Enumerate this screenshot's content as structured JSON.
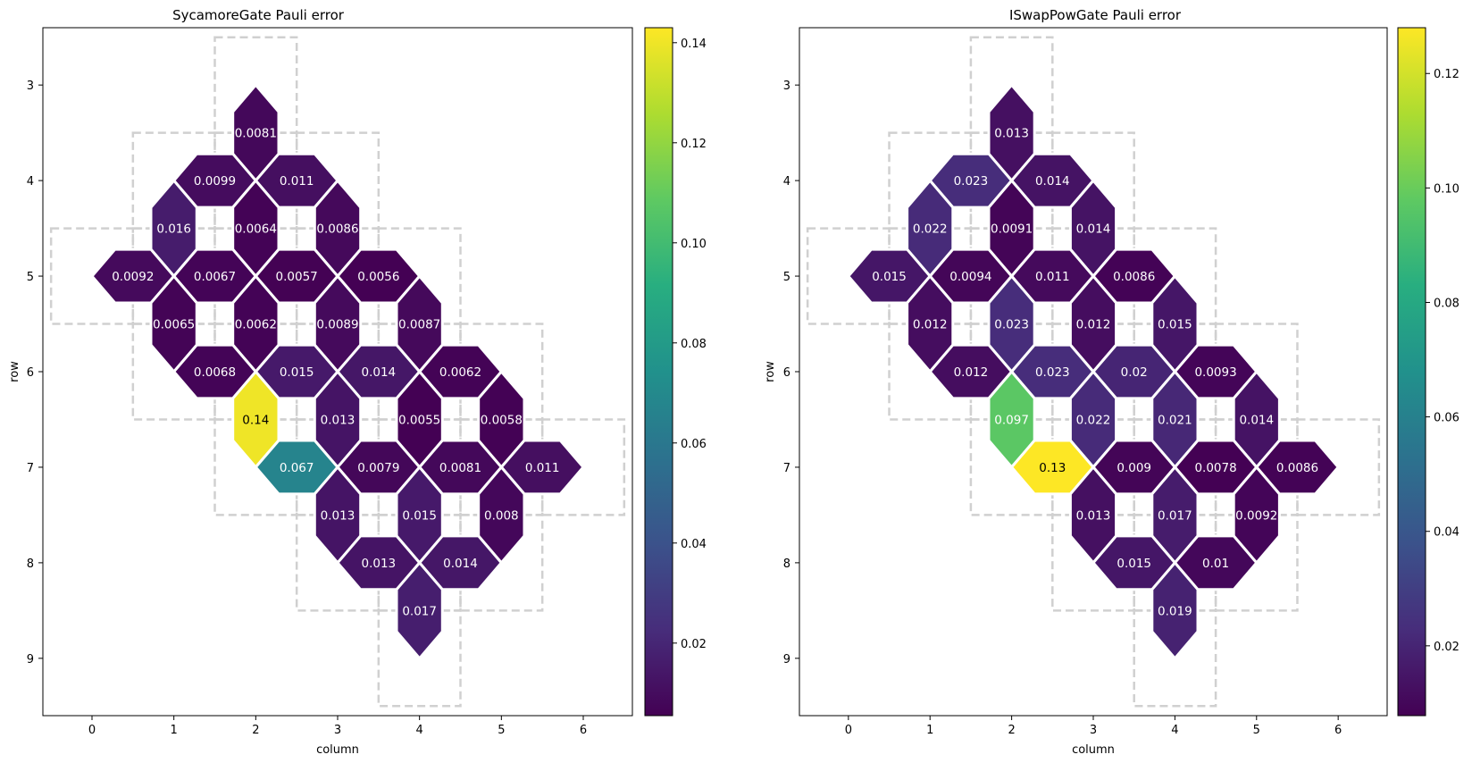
{
  "chart_data": [
    {
      "type": "heatmap",
      "title": "SycamoreGate Pauli error",
      "xlabel": "column",
      "ylabel": "row",
      "xlim": [
        -0.6,
        6.6
      ],
      "ylim": [
        9.6,
        2.4
      ],
      "xticks": [
        "0",
        "1",
        "2",
        "3",
        "4",
        "5",
        "6"
      ],
      "yticks": [
        "3",
        "4",
        "5",
        "6",
        "7",
        "8",
        "9"
      ],
      "colorbar": {
        "min": 0.0055,
        "max": 0.143,
        "ticks": [
          "0.02",
          "0.04",
          "0.06",
          "0.08",
          "0.10",
          "0.12",
          "0.14"
        ]
      },
      "couplers": [
        {
          "qubits": [
            [
              3,
              2
            ],
            [
              4,
              2
            ]
          ],
          "value": 0.0081,
          "label": "0.0081"
        },
        {
          "qubits": [
            [
              4,
              1
            ],
            [
              4,
              2
            ]
          ],
          "value": 0.0099,
          "label": "0.0099"
        },
        {
          "qubits": [
            [
              4,
              2
            ],
            [
              4,
              3
            ]
          ],
          "value": 0.011,
          "label": "0.011"
        },
        {
          "qubits": [
            [
              4,
              1
            ],
            [
              5,
              1
            ]
          ],
          "value": 0.016,
          "label": "0.016"
        },
        {
          "qubits": [
            [
              4,
              2
            ],
            [
              5,
              2
            ]
          ],
          "value": 0.0064,
          "label": "0.0064"
        },
        {
          "qubits": [
            [
              4,
              3
            ],
            [
              5,
              3
            ]
          ],
          "value": 0.0086,
          "label": "0.0086"
        },
        {
          "qubits": [
            [
              5,
              0
            ],
            [
              5,
              1
            ]
          ],
          "value": 0.0092,
          "label": "0.0092"
        },
        {
          "qubits": [
            [
              5,
              1
            ],
            [
              5,
              2
            ]
          ],
          "value": 0.0067,
          "label": "0.0067"
        },
        {
          "qubits": [
            [
              5,
              2
            ],
            [
              5,
              3
            ]
          ],
          "value": 0.0057,
          "label": "0.0057"
        },
        {
          "qubits": [
            [
              5,
              3
            ],
            [
              5,
              4
            ]
          ],
          "value": 0.0056,
          "label": "0.0056"
        },
        {
          "qubits": [
            [
              5,
              1
            ],
            [
              6,
              1
            ]
          ],
          "value": 0.0065,
          "label": "0.0065"
        },
        {
          "qubits": [
            [
              5,
              2
            ],
            [
              6,
              2
            ]
          ],
          "value": 0.0062,
          "label": "0.0062"
        },
        {
          "qubits": [
            [
              5,
              3
            ],
            [
              6,
              3
            ]
          ],
          "value": 0.0089,
          "label": "0.0089"
        },
        {
          "qubits": [
            [
              5,
              4
            ],
            [
              6,
              4
            ]
          ],
          "value": 0.0087,
          "label": "0.0087"
        },
        {
          "qubits": [
            [
              6,
              1
            ],
            [
              6,
              2
            ]
          ],
          "value": 0.0068,
          "label": "0.0068"
        },
        {
          "qubits": [
            [
              6,
              2
            ],
            [
              6,
              3
            ]
          ],
          "value": 0.015,
          "label": "0.015"
        },
        {
          "qubits": [
            [
              6,
              3
            ],
            [
              6,
              4
            ]
          ],
          "value": 0.014,
          "label": "0.014"
        },
        {
          "qubits": [
            [
              6,
              4
            ],
            [
              6,
              5
            ]
          ],
          "value": 0.0062,
          "label": "0.0062"
        },
        {
          "qubits": [
            [
              6,
              2
            ],
            [
              7,
              2
            ]
          ],
          "value": 0.14,
          "label": "0.14"
        },
        {
          "qubits": [
            [
              6,
              3
            ],
            [
              7,
              3
            ]
          ],
          "value": 0.013,
          "label": "0.013"
        },
        {
          "qubits": [
            [
              6,
              4
            ],
            [
              7,
              4
            ]
          ],
          "value": 0.0055,
          "label": "0.0055"
        },
        {
          "qubits": [
            [
              6,
              5
            ],
            [
              7,
              5
            ]
          ],
          "value": 0.0058,
          "label": "0.0058"
        },
        {
          "qubits": [
            [
              7,
              2
            ],
            [
              7,
              3
            ]
          ],
          "value": 0.067,
          "label": "0.067"
        },
        {
          "qubits": [
            [
              7,
              3
            ],
            [
              7,
              4
            ]
          ],
          "value": 0.0079,
          "label": "0.0079"
        },
        {
          "qubits": [
            [
              7,
              4
            ],
            [
              7,
              5
            ]
          ],
          "value": 0.0081,
          "label": "0.0081"
        },
        {
          "qubits": [
            [
              7,
              5
            ],
            [
              7,
              6
            ]
          ],
          "value": 0.011,
          "label": "0.011"
        },
        {
          "qubits": [
            [
              7,
              3
            ],
            [
              8,
              3
            ]
          ],
          "value": 0.013,
          "label": "0.013"
        },
        {
          "qubits": [
            [
              7,
              4
            ],
            [
              8,
              4
            ]
          ],
          "value": 0.015,
          "label": "0.015"
        },
        {
          "qubits": [
            [
              7,
              5
            ],
            [
              8,
              5
            ]
          ],
          "value": 0.008,
          "label": "0.008"
        },
        {
          "qubits": [
            [
              8,
              3
            ],
            [
              8,
              4
            ]
          ],
          "value": 0.013,
          "label": "0.013"
        },
        {
          "qubits": [
            [
              8,
              4
            ],
            [
              8,
              5
            ]
          ],
          "value": 0.014,
          "label": "0.014"
        },
        {
          "qubits": [
            [
              8,
              4
            ],
            [
              9,
              4
            ]
          ],
          "value": 0.017,
          "label": "0.017"
        }
      ]
    },
    {
      "type": "heatmap",
      "title": "ISwapPowGate Pauli error",
      "xlabel": "column",
      "ylabel": "row",
      "xlim": [
        -0.6,
        6.6
      ],
      "ylim": [
        9.6,
        2.4
      ],
      "xticks": [
        "0",
        "1",
        "2",
        "3",
        "4",
        "5",
        "6"
      ],
      "yticks": [
        "3",
        "4",
        "5",
        "6",
        "7",
        "8",
        "9"
      ],
      "colorbar": {
        "min": 0.0078,
        "max": 0.128,
        "ticks": [
          "0.02",
          "0.04",
          "0.06",
          "0.08",
          "0.10",
          "0.12"
        ]
      },
      "couplers": [
        {
          "qubits": [
            [
              3,
              2
            ],
            [
              4,
              2
            ]
          ],
          "value": 0.013,
          "label": "0.013"
        },
        {
          "qubits": [
            [
              4,
              1
            ],
            [
              4,
              2
            ]
          ],
          "value": 0.023,
          "label": "0.023"
        },
        {
          "qubits": [
            [
              4,
              2
            ],
            [
              4,
              3
            ]
          ],
          "value": 0.014,
          "label": "0.014"
        },
        {
          "qubits": [
            [
              4,
              1
            ],
            [
              5,
              1
            ]
          ],
          "value": 0.022,
          "label": "0.022"
        },
        {
          "qubits": [
            [
              4,
              2
            ],
            [
              5,
              2
            ]
          ],
          "value": 0.0091,
          "label": "0.0091"
        },
        {
          "qubits": [
            [
              4,
              3
            ],
            [
              5,
              3
            ]
          ],
          "value": 0.014,
          "label": "0.014"
        },
        {
          "qubits": [
            [
              5,
              0
            ],
            [
              5,
              1
            ]
          ],
          "value": 0.015,
          "label": "0.015"
        },
        {
          "qubits": [
            [
              5,
              1
            ],
            [
              5,
              2
            ]
          ],
          "value": 0.0094,
          "label": "0.0094"
        },
        {
          "qubits": [
            [
              5,
              2
            ],
            [
              5,
              3
            ]
          ],
          "value": 0.011,
          "label": "0.011"
        },
        {
          "qubits": [
            [
              5,
              3
            ],
            [
              5,
              4
            ]
          ],
          "value": 0.0086,
          "label": "0.0086"
        },
        {
          "qubits": [
            [
              5,
              1
            ],
            [
              6,
              1
            ]
          ],
          "value": 0.012,
          "label": "0.012"
        },
        {
          "qubits": [
            [
              5,
              2
            ],
            [
              6,
              2
            ]
          ],
          "value": 0.023,
          "label": "0.023"
        },
        {
          "qubits": [
            [
              5,
              3
            ],
            [
              6,
              3
            ]
          ],
          "value": 0.012,
          "label": "0.012"
        },
        {
          "qubits": [
            [
              5,
              4
            ],
            [
              6,
              4
            ]
          ],
          "value": 0.015,
          "label": "0.015"
        },
        {
          "qubits": [
            [
              6,
              1
            ],
            [
              6,
              2
            ]
          ],
          "value": 0.012,
          "label": "0.012"
        },
        {
          "qubits": [
            [
              6,
              2
            ],
            [
              6,
              3
            ]
          ],
          "value": 0.023,
          "label": "0.023"
        },
        {
          "qubits": [
            [
              6,
              3
            ],
            [
              6,
              4
            ]
          ],
          "value": 0.02,
          "label": "0.02"
        },
        {
          "qubits": [
            [
              6,
              4
            ],
            [
              6,
              5
            ]
          ],
          "value": 0.0093,
          "label": "0.0093"
        },
        {
          "qubits": [
            [
              6,
              2
            ],
            [
              7,
              2
            ]
          ],
          "value": 0.097,
          "label": "0.097"
        },
        {
          "qubits": [
            [
              6,
              3
            ],
            [
              7,
              3
            ]
          ],
          "value": 0.022,
          "label": "0.022"
        },
        {
          "qubits": [
            [
              6,
              4
            ],
            [
              7,
              4
            ]
          ],
          "value": 0.021,
          "label": "0.021"
        },
        {
          "qubits": [
            [
              6,
              5
            ],
            [
              7,
              5
            ]
          ],
          "value": 0.014,
          "label": "0.014"
        },
        {
          "qubits": [
            [
              7,
              2
            ],
            [
              7,
              3
            ]
          ],
          "value": 0.13,
          "label": "0.13"
        },
        {
          "qubits": [
            [
              7,
              3
            ],
            [
              7,
              4
            ]
          ],
          "value": 0.009,
          "label": "0.009"
        },
        {
          "qubits": [
            [
              7,
              4
            ],
            [
              7,
              5
            ]
          ],
          "value": 0.0078,
          "label": "0.0078"
        },
        {
          "qubits": [
            [
              7,
              5
            ],
            [
              7,
              6
            ]
          ],
          "value": 0.0086,
          "label": "0.0086"
        },
        {
          "qubits": [
            [
              7,
              3
            ],
            [
              8,
              3
            ]
          ],
          "value": 0.013,
          "label": "0.013"
        },
        {
          "qubits": [
            [
              7,
              4
            ],
            [
              8,
              4
            ]
          ],
          "value": 0.017,
          "label": "0.017"
        },
        {
          "qubits": [
            [
              7,
              5
            ],
            [
              8,
              5
            ]
          ],
          "value": 0.0092,
          "label": "0.0092"
        },
        {
          "qubits": [
            [
              8,
              3
            ],
            [
              8,
              4
            ]
          ],
          "value": 0.015,
          "label": "0.015"
        },
        {
          "qubits": [
            [
              8,
              4
            ],
            [
              8,
              5
            ]
          ],
          "value": 0.01,
          "label": "0.01"
        },
        {
          "qubits": [
            [
              8,
              4
            ],
            [
              9,
              4
            ]
          ],
          "value": 0.019,
          "label": "0.019"
        }
      ]
    }
  ]
}
